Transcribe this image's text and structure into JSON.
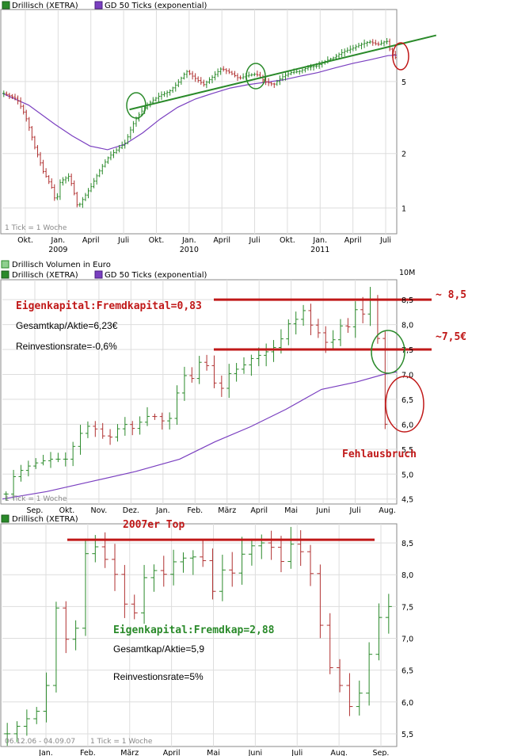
{
  "colors": {
    "up": "#2a8a2a",
    "down": "#b03030",
    "ma": "#7a3fc0",
    "green_line": "#2a8a2a",
    "red_line": "#c01818",
    "annot_red": "#c01818",
    "annot_green": "#2a8a2a",
    "grid": "#dddddd"
  },
  "panel1": {
    "legend_main": "Drillisch (XETRA)",
    "legend_ma": "GD 50 Ticks (exponential)",
    "tick_note": "1 Tick = 1 Woche"
  },
  "panel2": {
    "legend_volume": "Drillisch Volumen in Euro",
    "legend_main": "Drillisch (XETRA)",
    "legend_ma": "GD 50 Ticks (exponential)",
    "tick_note": "1 Tick = 1 Woche",
    "cut_label": "10M",
    "annot_ratio": "Eigenkapital:Fremdkapital=0,83",
    "annot_gesamtkap": "Gesamtkap/Aktie=6,23€",
    "annot_reinvest": "Reinvestionsrate=-0,6%",
    "annot_85": "~ 8,5",
    "annot_75": "~7,5€",
    "annot_fehl": "Fehlausbruch"
  },
  "panel3": {
    "legend_main": "Drillisch (XETRA)",
    "range_note": "06.12.06 - 04.09.07",
    "tick_note": "1 Tick = 1 Woche",
    "annot_top": "2007er Top",
    "annot_ratio": "Eigenkapital:Fremdkap=2,88",
    "annot_gesamtkap": "Gesamtkap/Aktie=5,9",
    "annot_reinvest": "Reinvestionsrate=5%"
  },
  "chart_data": [
    {
      "type": "ohlc",
      "title": "Drillisch (XETRA)",
      "series": [
        {
          "name": "Drillisch (XETRA)",
          "style": "weekly bars"
        },
        {
          "name": "GD 50 Ticks (exponential)",
          "style": "line"
        }
      ],
      "y_scale": "log",
      "y_ticks": [
        {
          "value": 5,
          "label": "5"
        },
        {
          "value": 2,
          "label": "2"
        },
        {
          "value": 1,
          "label": "1"
        }
      ],
      "x_ticks": [
        {
          "label": "Okt.",
          "year": ""
        },
        {
          "label": "Jan.",
          "year": "2009"
        },
        {
          "label": "April",
          "year": ""
        },
        {
          "label": "Juli",
          "year": ""
        },
        {
          "label": "Okt.",
          "year": ""
        },
        {
          "label": "Jan.",
          "year": "2010"
        },
        {
          "label": "April",
          "year": ""
        },
        {
          "label": "Juli",
          "year": ""
        },
        {
          "label": "Okt.",
          "year": ""
        },
        {
          "label": "Jan.",
          "year": "2011"
        },
        {
          "label": "April",
          "year": ""
        },
        {
          "label": "Juli",
          "year": ""
        }
      ],
      "price_path": [
        [
          0,
          4.3
        ],
        [
          3,
          4.0
        ],
        [
          5,
          3.2
        ],
        [
          7,
          2.2
        ],
        [
          9,
          1.6
        ],
        [
          11,
          1.3
        ],
        [
          12,
          1.05
        ],
        [
          13,
          1.4
        ],
        [
          15,
          1.5
        ],
        [
          16,
          1.25
        ],
        [
          17,
          1.0
        ],
        [
          18,
          1.1
        ],
        [
          20,
          1.3
        ],
        [
          22,
          1.6
        ],
        [
          24,
          1.9
        ],
        [
          26,
          2.1
        ],
        [
          28,
          2.3
        ],
        [
          30,
          3.0
        ],
        [
          32,
          3.5
        ],
        [
          34,
          3.9
        ],
        [
          36,
          4.2
        ],
        [
          38,
          4.4
        ],
        [
          40,
          4.9
        ],
        [
          42,
          5.7
        ],
        [
          44,
          5.2
        ],
        [
          46,
          4.8
        ],
        [
          48,
          5.3
        ],
        [
          50,
          5.9
        ],
        [
          52,
          5.6
        ],
        [
          54,
          5.2
        ],
        [
          56,
          5.4
        ],
        [
          58,
          5.5
        ],
        [
          60,
          5.0
        ],
        [
          62,
          4.8
        ],
        [
          64,
          5.3
        ],
        [
          66,
          5.6
        ],
        [
          68,
          5.7
        ],
        [
          70,
          6.0
        ],
        [
          72,
          6.1
        ],
        [
          74,
          6.5
        ],
        [
          76,
          6.8
        ],
        [
          78,
          7.3
        ],
        [
          80,
          7.6
        ],
        [
          82,
          8.0
        ],
        [
          84,
          8.3
        ],
        [
          86,
          8.0
        ],
        [
          88,
          8.4
        ],
        [
          89,
          7.2
        ],
        [
          90,
          6.8
        ]
      ],
      "ma_path": [
        [
          0,
          4.3
        ],
        [
          6,
          3.7
        ],
        [
          12,
          2.9
        ],
        [
          16,
          2.5
        ],
        [
          20,
          2.2
        ],
        [
          24,
          2.1
        ],
        [
          28,
          2.25
        ],
        [
          32,
          2.6
        ],
        [
          36,
          3.1
        ],
        [
          40,
          3.6
        ],
        [
          44,
          4.0
        ],
        [
          48,
          4.3
        ],
        [
          52,
          4.6
        ],
        [
          56,
          4.8
        ],
        [
          60,
          4.95
        ],
        [
          64,
          5.1
        ],
        [
          68,
          5.35
        ],
        [
          72,
          5.6
        ],
        [
          76,
          5.95
        ],
        [
          80,
          6.3
        ],
        [
          84,
          6.6
        ],
        [
          88,
          6.95
        ],
        [
          90,
          7.0
        ]
      ],
      "trendline": {
        "x_from": 29,
        "y_from": 3.5,
        "x_to": 99,
        "y_to": 9.0
      }
    },
    {
      "type": "ohlc",
      "title": "Drillisch (XETRA)",
      "series": [
        {
          "name": "Drillisch (XETRA)",
          "style": "weekly bars"
        },
        {
          "name": "GD 50 Ticks (exponential)",
          "style": "line"
        }
      ],
      "ylim": [
        4.4,
        8.9
      ],
      "y_ticks": [
        4.5,
        5.0,
        5.5,
        6.0,
        6.5,
        7.0,
        7.5,
        8.0,
        8.5
      ],
      "y_tick_labels": [
        "4,5",
        "5,0",
        "5,5",
        "6,0",
        "6,5",
        "7,0",
        "7,5",
        "8,0",
        "8,5"
      ],
      "x_ticks": [
        "Sep.",
        "Okt.",
        "Nov.",
        "Dez.",
        "Jan.",
        "Feb.",
        "März",
        "April",
        "Mai",
        "Juni",
        "Juli",
        "Aug."
      ],
      "price_path": [
        [
          0,
          4.6
        ],
        [
          1,
          5.0
        ],
        [
          3,
          5.2
        ],
        [
          5,
          5.3
        ],
        [
          7,
          5.3
        ],
        [
          8,
          5.6
        ],
        [
          9,
          5.9
        ],
        [
          10,
          6.0
        ],
        [
          11,
          5.8
        ],
        [
          12,
          5.7
        ],
        [
          13,
          5.9
        ],
        [
          14,
          6.0
        ],
        [
          15,
          5.9
        ],
        [
          16,
          6.1
        ],
        [
          17,
          6.2
        ],
        [
          18,
          6.1
        ],
        [
          19,
          6.0
        ],
        [
          20,
          6.6
        ],
        [
          21,
          7.0
        ],
        [
          22,
          6.9
        ],
        [
          23,
          7.4
        ],
        [
          24,
          7.0
        ],
        [
          25,
          6.6
        ],
        [
          26,
          7.0
        ],
        [
          27,
          7.1
        ],
        [
          28,
          7.2
        ],
        [
          29,
          7.35
        ],
        [
          30,
          7.4
        ],
        [
          31,
          7.5
        ],
        [
          32,
          7.6
        ],
        [
          33,
          8.0
        ],
        [
          34,
          8.1
        ],
        [
          35,
          8.3
        ],
        [
          36,
          7.9
        ],
        [
          37,
          7.8
        ],
        [
          38,
          7.5
        ],
        [
          39,
          8.0
        ],
        [
          40,
          7.9
        ],
        [
          41,
          8.3
        ],
        [
          42,
          8.2
        ],
        [
          43,
          8.6
        ],
        [
          44,
          7.2
        ],
        [
          44.5,
          6.0
        ]
      ],
      "ma_path": [
        [
          0,
          4.5
        ],
        [
          5,
          4.65
        ],
        [
          10,
          4.85
        ],
        [
          15,
          5.05
        ],
        [
          20,
          5.3
        ],
        [
          24,
          5.65
        ],
        [
          28,
          5.95
        ],
        [
          32,
          6.3
        ],
        [
          36,
          6.7
        ],
        [
          40,
          6.85
        ],
        [
          43,
          7.0
        ],
        [
          44.5,
          7.05
        ]
      ],
      "hlines": [
        8.5,
        7.5
      ]
    },
    {
      "type": "ohlc",
      "title": "Drillisch (XETRA)",
      "series": [
        {
          "name": "Drillisch (XETRA)",
          "style": "weekly bars"
        }
      ],
      "ylim": [
        5.3,
        8.8
      ],
      "y_ticks": [
        5.5,
        6.0,
        6.5,
        7.0,
        7.5,
        8.0,
        8.5
      ],
      "y_tick_labels": [
        "5,5",
        "6,0",
        "6,5",
        "7,0",
        "7,5",
        "8,0",
        "8,5"
      ],
      "x_ticks": [
        "Jan.",
        "Feb.",
        "März",
        "April",
        "Mai",
        "Juni",
        "Juli",
        "Aug.",
        "Sep."
      ],
      "price_path": [
        [
          0,
          5.5
        ],
        [
          2,
          5.7
        ],
        [
          4,
          5.9
        ],
        [
          5,
          6.4
        ],
        [
          6,
          7.6
        ],
        [
          7,
          7.0
        ],
        [
          8,
          6.8
        ],
        [
          9,
          8.2
        ],
        [
          10,
          8.5
        ],
        [
          11,
          8.4
        ],
        [
          13,
          8.0
        ],
        [
          14,
          7.6
        ],
        [
          15,
          7.2
        ],
        [
          16,
          7.8
        ],
        [
          17,
          8.1
        ],
        [
          19,
          8.0
        ],
        [
          20,
          8.2
        ],
        [
          22,
          8.3
        ],
        [
          24,
          8.2
        ],
        [
          25,
          7.6
        ],
        [
          26,
          8.1
        ],
        [
          27,
          8.0
        ],
        [
          28,
          8.2
        ],
        [
          29,
          8.6
        ],
        [
          30,
          8.3
        ],
        [
          31,
          8.6
        ],
        [
          33,
          8.2
        ],
        [
          34,
          8.5
        ],
        [
          35,
          8.4
        ],
        [
          36,
          8.3
        ],
        [
          37,
          7.8
        ],
        [
          38,
          7.0
        ],
        [
          39,
          6.5
        ],
        [
          40,
          6.3
        ],
        [
          41,
          5.9
        ],
        [
          42,
          6.0
        ],
        [
          43,
          6.3
        ],
        [
          44,
          7.0
        ],
        [
          45,
          7.4
        ],
        [
          46,
          7.5
        ]
      ],
      "hlines": [
        8.55
      ]
    }
  ]
}
